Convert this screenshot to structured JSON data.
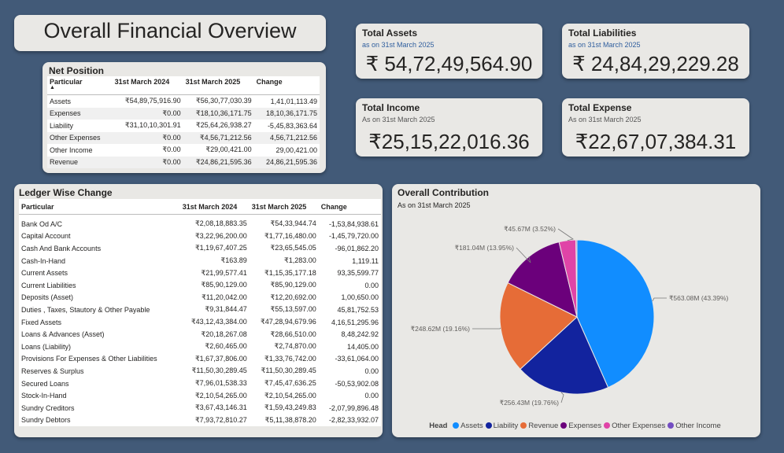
{
  "title": "Overall Financial Overview",
  "kpis": {
    "assets": {
      "title": "Total Assets",
      "subtitle": "as on 31st March 2025",
      "value": "₹ 54,72,49,564.90"
    },
    "liabilities": {
      "title": "Total Liabilities",
      "subtitle": "as on 31st March 2025",
      "value": "₹ 24,84,29,229.28"
    },
    "income": {
      "title": "Total Income",
      "subtitle": "As on 31st March 2025",
      "value": "₹25,15,22,016.36"
    },
    "expense": {
      "title": "Total Expense",
      "subtitle": "As on 31st March 2025",
      "value": "₹22,67,07,384.31"
    }
  },
  "net_position": {
    "title": "Net Position",
    "columns": [
      "Particular",
      "31st March 2024",
      "31st March 2025",
      "Change"
    ],
    "rows": [
      [
        "Assets",
        "₹54,89,75,916.90",
        "₹56,30,77,030.39",
        "1,41,01,113.49"
      ],
      [
        "Expenses",
        "₹0.00",
        "₹18,10,36,171.75",
        "18,10,36,171.75"
      ],
      [
        "Liability",
        "₹31,10,10,301.91",
        "₹25,64,26,938.27",
        "-5,45,83,363.64"
      ],
      [
        "Other Expenses",
        "₹0.00",
        "₹4,56,71,212.56",
        "4,56,71,212.56"
      ],
      [
        "Other Income",
        "₹0.00",
        "₹29,00,421.00",
        "29,00,421.00"
      ],
      [
        "Revenue",
        "₹0.00",
        "₹24,86,21,595.36",
        "24,86,21,595.36"
      ]
    ]
  },
  "ledger": {
    "title": "Ledger Wise Change",
    "columns": [
      "Particular",
      "31st March 2024",
      "31st March 2025",
      "Change"
    ],
    "rows": [
      [
        "Bank Od A/C",
        "₹2,08,18,883.35",
        "₹54,33,944.74",
        "-1,53,84,938.61"
      ],
      [
        "Capital Account",
        "₹3,22,96,200.00",
        "₹1,77,16,480.00",
        "-1,45,79,720.00"
      ],
      [
        "Cash And Bank Accounts",
        "₹1,19,67,407.25",
        "₹23,65,545.05",
        "-96,01,862.20"
      ],
      [
        "Cash-In-Hand",
        "₹163.89",
        "₹1,283.00",
        "1,119.11"
      ],
      [
        "Current Assets",
        "₹21,99,577.41",
        "₹1,15,35,177.18",
        "93,35,599.77"
      ],
      [
        "Current Liabilities",
        "₹85,90,129.00",
        "₹85,90,129.00",
        "0.00"
      ],
      [
        "Deposits (Asset)",
        "₹11,20,042.00",
        "₹12,20,692.00",
        "1,00,650.00"
      ],
      [
        "Duties , Taxes, Stautory & Other Payable",
        "₹9,31,844.47",
        "₹55,13,597.00",
        "45,81,752.53"
      ],
      [
        "Fixed Assets",
        "₹43,12,43,384.00",
        "₹47,28,94,679.96",
        "4,16,51,295.96"
      ],
      [
        "Loans & Advances (Asset)",
        "₹20,18,267.08",
        "₹28,66,510.00",
        "8,48,242.92"
      ],
      [
        "Loans (Liability)",
        "₹2,60,465.00",
        "₹2,74,870.00",
        "14,405.00"
      ],
      [
        "Provisions For Expenses & Other Liabilities",
        "₹1,67,37,806.00",
        "₹1,33,76,742.00",
        "-33,61,064.00"
      ],
      [
        "Reserves & Surplus",
        "₹11,50,30,289.45",
        "₹11,50,30,289.45",
        "0.00"
      ],
      [
        "Secured Loans",
        "₹7,96,01,538.33",
        "₹7,45,47,636.25",
        "-50,53,902.08"
      ],
      [
        "Stock-In-Hand",
        "₹2,10,54,265.00",
        "₹2,10,54,265.00",
        "0.00"
      ],
      [
        "Sundry Creditors",
        "₹3,67,43,146.31",
        "₹1,59,43,249.83",
        "-2,07,99,896.48"
      ],
      [
        "Sundry Debtors",
        "₹7,93,72,810.27",
        "₹5,11,38,878.20",
        "-2,82,33,932.07"
      ]
    ]
  },
  "contribution": {
    "title": "Overall Contribution",
    "subtitle": "As on 31st March 2025",
    "legend_title": "Head"
  },
  "chart_data": {
    "type": "pie",
    "title": "Overall Contribution",
    "subtitle": "As on 31st March 2025",
    "legend_title": "Head",
    "legend_position": "bottom",
    "slices": [
      {
        "name": "Assets",
        "value": 563.08,
        "label": "₹563.08M (43.39%)",
        "color": "#118dff"
      },
      {
        "name": "Liability",
        "value": 256.43,
        "label": "₹256.43M (19.76%)",
        "color": "#12239e"
      },
      {
        "name": "Revenue",
        "value": 248.62,
        "label": "₹248.62M (19.16%)",
        "color": "#e66c37"
      },
      {
        "name": "Expenses",
        "value": 181.04,
        "label": "₹181.04M (13.95%)",
        "color": "#6b007b"
      },
      {
        "name": "Other Expenses",
        "value": 45.67,
        "label": "₹45.67M (3.52%)",
        "color": "#e044a7"
      },
      {
        "name": "Other Income",
        "value": 2.9,
        "label": "",
        "color": "#744ec2"
      }
    ]
  }
}
